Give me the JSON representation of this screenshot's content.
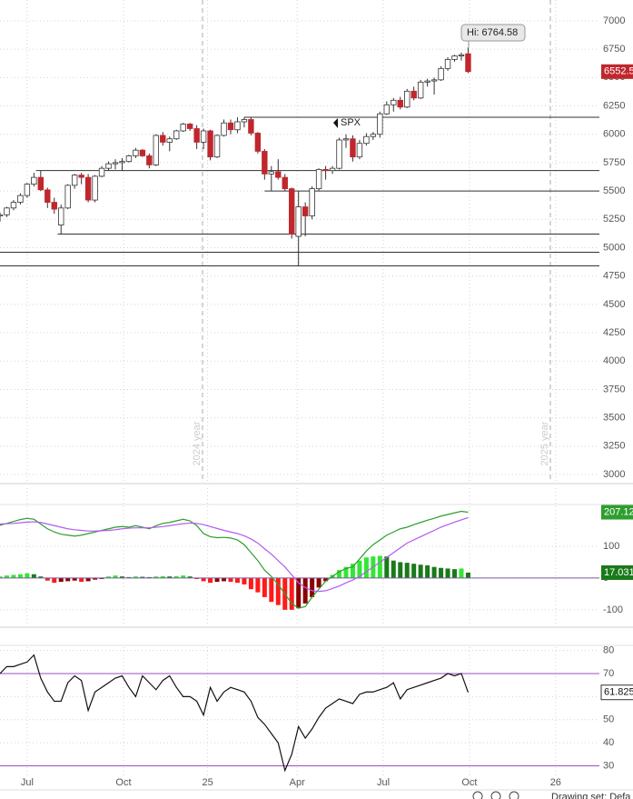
{
  "chart_data": [
    {
      "type": "candlestick",
      "x": [
        -4,
        -3,
        -2,
        -1,
        0,
        1,
        2,
        3,
        4,
        5,
        6,
        7,
        8,
        9,
        10,
        11,
        12,
        13,
        14,
        15,
        16,
        17,
        18,
        19,
        20,
        21,
        22,
        23,
        24,
        25,
        26,
        27,
        28,
        29,
        30,
        31,
        32,
        33,
        34,
        35,
        36,
        37,
        38,
        39,
        40,
        41,
        42,
        43,
        44,
        45,
        46,
        47,
        48,
        49,
        50,
        51,
        52,
        53,
        54,
        55,
        56,
        57,
        58,
        59,
        60,
        61,
        62,
        63,
        64,
        65
      ],
      "xlim": [
        -4,
        84.35
      ],
      "ylim": [
        2928,
        7184
      ],
      "yticks": [
        3000,
        3250,
        3500,
        3750,
        4000,
        4250,
        4500,
        4750,
        5000,
        5250,
        5500,
        5750,
        6000,
        6250,
        6500,
        6750,
        7000
      ],
      "grid": true,
      "series": [
        {
          "name": "SPX",
          "up_color": "#ffffff",
          "down_color": "#c0272d",
          "open": [
            5280,
            5290,
            5350,
            5400,
            5460,
            5560,
            5620,
            5510,
            5400,
            5200,
            5350,
            5550,
            5640,
            5620,
            5420,
            5630,
            5700,
            5740,
            5750,
            5760,
            5810,
            5860,
            5810,
            5730,
            5990,
            5930,
            5960,
            6030,
            6090,
            6050,
            5930,
            6030,
            5800,
            5990,
            6100,
            6040,
            6110,
            6130,
            6010,
            5850,
            5650,
            5670,
            5620,
            5520,
            5100,
            5360,
            5280,
            5520,
            5690,
            5680,
            5700,
            5950,
            5960,
            5800,
            5920,
            5980,
            6000,
            6180,
            6260,
            6300,
            6240,
            6380,
            6320,
            6460,
            6470,
            6480,
            6580,
            6660,
            6690,
            6710
          ],
          "high": [
            5310,
            5360,
            5420,
            5480,
            5570,
            5660,
            5680,
            5530,
            5440,
            5380,
            5560,
            5650,
            5660,
            5650,
            5640,
            5720,
            5760,
            5780,
            5790,
            5820,
            5880,
            5870,
            5830,
            6000,
            6020,
            5980,
            6040,
            6100,
            6100,
            6080,
            6050,
            6040,
            6000,
            6130,
            6130,
            6150,
            6150,
            6150,
            6020,
            5870,
            5720,
            5780,
            5650,
            5530,
            5500,
            5400,
            5540,
            5700,
            5720,
            5720,
            5970,
            6000,
            5990,
            5950,
            6010,
            6020,
            6200,
            6290,
            6320,
            6330,
            6400,
            6420,
            6480,
            6490,
            6500,
            6600,
            6680,
            6700,
            6720,
            6764.58
          ],
          "low": [
            5230,
            5270,
            5330,
            5380,
            5440,
            5540,
            5500,
            5350,
            5300,
            5120,
            5340,
            5520,
            5560,
            5400,
            5400,
            5620,
            5680,
            5690,
            5680,
            5750,
            5790,
            5800,
            5700,
            5720,
            5900,
            5850,
            5950,
            6020,
            6030,
            5870,
            5870,
            5770,
            5790,
            5980,
            6000,
            6010,
            6060,
            5990,
            5830,
            5600,
            5500,
            5600,
            5500,
            5080,
            4835,
            5100,
            5250,
            5500,
            5600,
            5650,
            5690,
            5880,
            5760,
            5780,
            5900,
            5950,
            5970,
            6170,
            6200,
            6220,
            6230,
            6300,
            6310,
            6420,
            6350,
            6470,
            6560,
            6640,
            6650,
            6540
          ],
          "close": [
            5290,
            5350,
            5400,
            5460,
            5560,
            5620,
            5510,
            5400,
            5340,
            5350,
            5550,
            5640,
            5620,
            5420,
            5630,
            5700,
            5740,
            5750,
            5760,
            5810,
            5860,
            5810,
            5730,
            5990,
            5930,
            5960,
            6030,
            6090,
            6050,
            5930,
            6030,
            5800,
            5990,
            6100,
            6040,
            6110,
            6130,
            6010,
            5850,
            5650,
            5670,
            5620,
            5520,
            5120,
            5360,
            5280,
            5520,
            5690,
            5680,
            5700,
            5950,
            5960,
            5800,
            5920,
            5980,
            6000,
            6180,
            6260,
            6300,
            6240,
            6380,
            6320,
            6460,
            6470,
            6480,
            6580,
            6660,
            6690,
            6700,
            6552.5
          ]
        }
      ],
      "levels": [
        {
          "value": 6150,
          "from": 32
        },
        {
          "value": 5680,
          "from": 1.3
        },
        {
          "value": 5500,
          "from": 35
        },
        {
          "value": 5120,
          "from": 4.5
        },
        {
          "value": 4960,
          "from": -4
        },
        {
          "value": 4840,
          "from": -4
        }
      ],
      "year_markers": [
        {
          "x": 25.85,
          "label": "2024 year"
        },
        {
          "x": 77.12,
          "label": "2025 year"
        }
      ],
      "annotations": [
        {
          "text": "Hi: 6764.58"
        }
      ]
    },
    {
      "type": "macd",
      "x": [
        -4,
        -3,
        -2,
        -1,
        0,
        1,
        2,
        3,
        4,
        5,
        6,
        7,
        8,
        9,
        10,
        11,
        12,
        13,
        14,
        15,
        16,
        17,
        18,
        19,
        20,
        21,
        22,
        23,
        24,
        25,
        26,
        27,
        28,
        29,
        30,
        31,
        32,
        33,
        34,
        35,
        36,
        37,
        38,
        39,
        40,
        41,
        42,
        43,
        44,
        45,
        46,
        47,
        48,
        49,
        50,
        51,
        52,
        53,
        54,
        55,
        56,
        57,
        58,
        59,
        60,
        61,
        62,
        63,
        64,
        65
      ],
      "xlim": [
        -4,
        84.35
      ],
      "ylim": [
        -149,
        283
      ],
      "yticks": [
        -100,
        0,
        100
      ],
      "grid": true,
      "series": [
        {
          "color": "#2e9e2e",
          "values": [
            166,
            172,
            178,
            184,
            188,
            185,
            170,
            155,
            145,
            138,
            135,
            132,
            135,
            140,
            145,
            150,
            155,
            160,
            162,
            160,
            165,
            160,
            155,
            165,
            172,
            175,
            180,
            185,
            180,
            165,
            140,
            130,
            127,
            128,
            126,
            120,
            105,
            80,
            55,
            25,
            5,
            -20,
            -50,
            -80,
            -95,
            -90,
            -60,
            -35,
            -10,
            5,
            20,
            30,
            35,
            60,
            85,
            105,
            120,
            135,
            145,
            155,
            160,
            168,
            175,
            182,
            188,
            195,
            200,
            205,
            210,
            207.12
          ]
        },
        {
          "color": "#b15cf0",
          "values": [
            170,
            171,
            172,
            174,
            176,
            177,
            175,
            170,
            165,
            160,
            155,
            152,
            150,
            148,
            148,
            149,
            150,
            152,
            155,
            157,
            158,
            158,
            158,
            160,
            162,
            165,
            168,
            171,
            173,
            172,
            168,
            162,
            156,
            150,
            145,
            140,
            133,
            123,
            110,
            92,
            75,
            55,
            35,
            10,
            -15,
            -30,
            -40,
            -42,
            -40,
            -33,
            -25,
            -15,
            -6,
            5,
            20,
            35,
            50,
            65,
            80,
            95,
            110,
            120,
            130,
            140,
            150,
            160,
            168,
            176,
            183,
            190.09
          ]
        },
        {
          "type": "histogram",
          "colors": [
            "#33e633",
            "#1a7a1a",
            "#ff1a1a",
            "#8b0000"
          ],
          "values": [
            5,
            8,
            10,
            12,
            15,
            12,
            5,
            -8,
            -15,
            -12,
            -10,
            -8,
            -12,
            -10,
            -5,
            -3,
            5,
            8,
            5,
            3,
            5,
            4,
            3,
            5,
            6,
            5,
            6,
            8,
            5,
            -3,
            -10,
            -15,
            -12,
            -10,
            -12,
            -15,
            -20,
            -35,
            -45,
            -60,
            -75,
            -85,
            -100,
            -100,
            -95,
            -80,
            -60,
            -30,
            -10,
            10,
            25,
            35,
            45,
            55,
            65,
            68,
            70,
            68,
            55,
            50,
            48,
            45,
            42,
            40,
            35,
            32,
            30,
            28,
            30,
            17.031
          ]
        }
      ]
    },
    {
      "type": "line",
      "x": [
        -4,
        -3,
        -2,
        -1,
        0,
        1,
        2,
        3,
        4,
        5,
        6,
        7,
        8,
        9,
        10,
        11,
        12,
        13,
        14,
        15,
        16,
        17,
        18,
        19,
        20,
        21,
        22,
        23,
        24,
        25,
        26,
        27,
        28,
        29,
        30,
        31,
        32,
        33,
        34,
        35,
        36,
        37,
        38,
        39,
        40,
        41,
        42,
        43,
        44,
        45,
        46,
        47,
        48,
        49,
        50,
        51,
        52,
        53,
        54,
        55,
        56,
        57,
        58,
        59,
        60,
        61,
        62,
        63,
        64,
        65
      ],
      "xlim": [
        -4,
        84.35
      ],
      "ylim": [
        25.1,
        81.4
      ],
      "yticks": [
        30,
        40,
        50,
        60,
        70,
        80
      ],
      "xticks": [
        {
          "value": 0,
          "label": "Jul"
        },
        {
          "value": 14.2,
          "label": "Oct"
        },
        {
          "value": 26.6,
          "label": "25"
        },
        {
          "value": 39.8,
          "label": "Apr"
        },
        {
          "value": 52.5,
          "label": "Jul"
        },
        {
          "value": 65.2,
          "label": "Oct"
        },
        {
          "value": 77.9,
          "label": "26"
        }
      ],
      "grid": true,
      "hlines": [
        70,
        30
      ],
      "hline_color": "#9b4fc0",
      "series": [
        {
          "color": "#111111",
          "values": [
            70,
            73,
            73,
            74,
            75,
            78,
            68,
            62,
            58,
            58,
            66,
            69,
            67,
            54,
            62,
            64,
            66,
            68,
            69,
            64,
            60,
            69,
            66,
            63,
            67,
            69,
            64,
            60,
            60,
            58,
            52,
            64,
            58,
            62,
            64,
            63,
            62,
            58,
            51,
            48,
            44,
            40,
            28,
            35,
            47,
            42,
            46,
            51,
            55,
            57,
            59,
            58,
            57,
            61,
            62,
            62,
            63,
            64,
            66,
            59,
            63,
            64,
            65,
            66,
            67,
            68,
            70,
            69,
            70,
            61.825
          ]
        }
      ]
    }
  ],
  "toolbar": {
    "text": "Drawing set: Defa"
  }
}
